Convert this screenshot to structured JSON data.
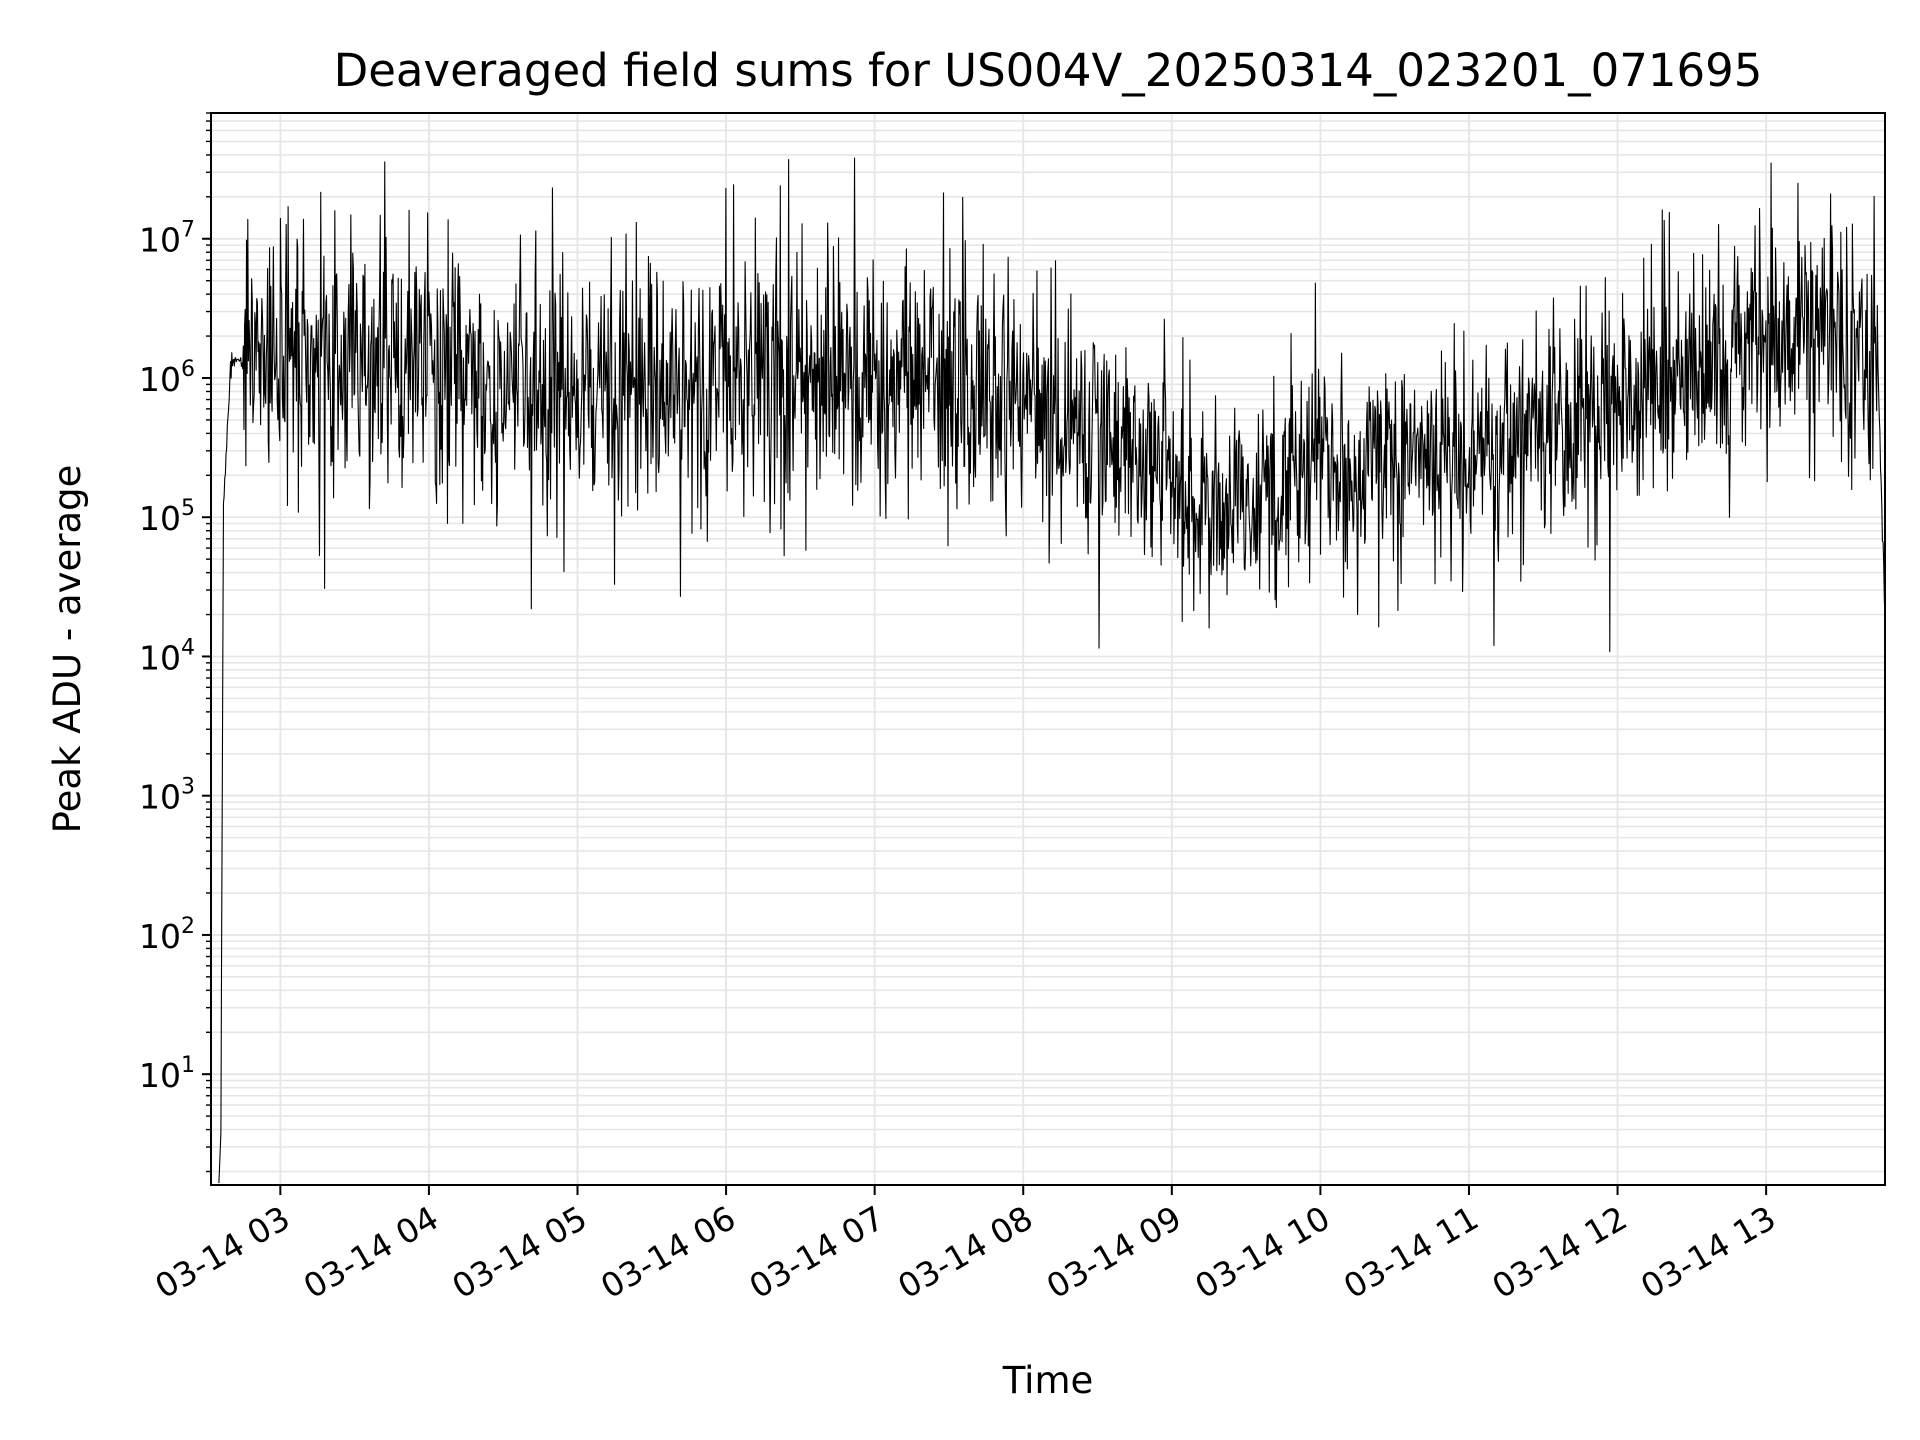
{
  "chart_data": {
    "type": "line",
    "title": "Deaveraged field sums for US004V_20250314_023201_071695",
    "xlabel": "Time",
    "ylabel": "Peak ADU - average",
    "y_scale": "log",
    "ylim": [
      1.6,
      80000000
    ],
    "xlim": [
      "2025-03-14 02:32",
      "2025-03-14 13:48"
    ],
    "x_ticks": [
      {
        "time": "2025-03-14 03:00",
        "label": "03-14 03"
      },
      {
        "time": "2025-03-14 04:00",
        "label": "03-14 04"
      },
      {
        "time": "2025-03-14 05:00",
        "label": "03-14 05"
      },
      {
        "time": "2025-03-14 06:00",
        "label": "03-14 06"
      },
      {
        "time": "2025-03-14 07:00",
        "label": "03-14 07"
      },
      {
        "time": "2025-03-14 08:00",
        "label": "03-14 08"
      },
      {
        "time": "2025-03-14 09:00",
        "label": "03-14 09"
      },
      {
        "time": "2025-03-14 10:00",
        "label": "03-14 10"
      },
      {
        "time": "2025-03-14 11:00",
        "label": "03-14 11"
      },
      {
        "time": "2025-03-14 12:00",
        "label": "03-14 12"
      },
      {
        "time": "2025-03-14 13:00",
        "label": "03-14 13"
      }
    ],
    "y_ticks": [
      {
        "value": 10,
        "base": "10",
        "exp": "1"
      },
      {
        "value": 100,
        "base": "10",
        "exp": "2"
      },
      {
        "value": 1000,
        "base": "10",
        "exp": "3"
      },
      {
        "value": 10000,
        "base": "10",
        "exp": "4"
      },
      {
        "value": 100000,
        "base": "10",
        "exp": "5"
      },
      {
        "value": 1000000,
        "base": "10",
        "exp": "6"
      },
      {
        "value": 10000000,
        "base": "10",
        "exp": "7"
      }
    ],
    "grid": true,
    "line_color": "#000000",
    "grid_color": "#e6e6e6",
    "series": [
      {
        "points": [
          [
            "2025-03-14 02:36",
            3.8
          ],
          [
            "2025-03-14 02:37",
            120000
          ],
          [
            "2025-03-14 02:40",
            1300000
          ],
          [
            "2025-03-14 02:45",
            1300000
          ],
          [
            "2025-03-14 03:00",
            1200000
          ],
          [
            "2025-03-14 03:30",
            1400000
          ],
          [
            "2025-03-14 04:00",
            1200000
          ],
          [
            "2025-03-14 04:30",
            800000
          ],
          [
            "2025-03-14 05:00",
            700000
          ],
          [
            "2025-03-14 05:30",
            900000
          ],
          [
            "2025-03-14 06:00",
            900000
          ],
          [
            "2025-03-14 06:30",
            900000
          ],
          [
            "2025-03-14 07:00",
            900000
          ],
          [
            "2025-03-14 07:30",
            900000
          ],
          [
            "2025-03-14 08:00",
            700000
          ],
          [
            "2025-03-14 08:30",
            400000
          ],
          [
            "2025-03-14 09:00",
            200000
          ],
          [
            "2025-03-14 09:15",
            120000
          ],
          [
            "2025-03-14 09:30",
            150000
          ],
          [
            "2025-03-14 10:00",
            200000
          ],
          [
            "2025-03-14 10:30",
            250000
          ],
          [
            "2025-03-14 11:00",
            250000
          ],
          [
            "2025-03-14 11:30",
            450000
          ],
          [
            "2025-03-14 12:00",
            600000
          ],
          [
            "2025-03-14 12:30",
            1200000
          ],
          [
            "2025-03-14 13:00",
            1800000
          ],
          [
            "2025-03-14 13:30",
            2000000
          ],
          [
            "2025-03-14 13:45",
            1500000
          ],
          [
            "2025-03-14 13:48",
            17000
          ]
        ],
        "noise_log10_sd": 0.45,
        "spikes": [
          [
            "2025-03-14 03:00",
            14000000
          ],
          [
            "2025-03-14 03:52",
            16000000
          ],
          [
            "2025-03-14 06:00",
            23000000
          ],
          [
            "2025-03-14 06:22",
            24000000
          ],
          [
            "2025-03-14 06:52",
            38000000
          ],
          [
            "2025-03-14 09:58",
            4800000
          ],
          [
            "2025-03-14 13:02",
            35000000
          ],
          [
            "2025-03-14 13:26",
            21000000
          ]
        ],
        "dips": [
          [
            "2025-03-14 09:15",
            16000
          ],
          [
            "2025-03-14 11:10",
            12000
          ],
          [
            "2025-03-14 05:15",
            33000
          ],
          [
            "2025-03-14 10:15",
            20000
          ]
        ]
      }
    ]
  }
}
